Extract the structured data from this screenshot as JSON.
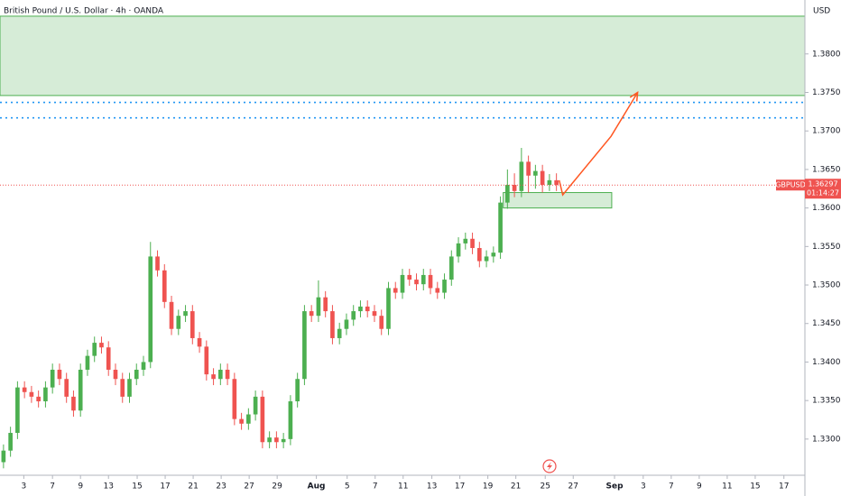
{
  "chart_data": {
    "type": "candlestick",
    "title": "British Pound / U.S. Dollar · 4h · OANDA",
    "currency": "USD",
    "symbol": "GBPUSD",
    "last_price": 1.36297,
    "last_price_label": "1.36297",
    "countdown": "01:14:27",
    "up_color": "#4caf50",
    "down_color": "#ef5350",
    "ylim": [
      1.3253,
      1.387
    ],
    "yticks": [
      {
        "value": 1.33,
        "label": "1.33000"
      },
      {
        "value": 1.335,
        "label": "1.33500"
      },
      {
        "value": 1.34,
        "label": "1.34000"
      },
      {
        "value": 1.345,
        "label": "1.34500"
      },
      {
        "value": 1.35,
        "label": "1.35000"
      },
      {
        "value": 1.355,
        "label": "1.35500"
      },
      {
        "value": 1.36,
        "label": "1.36000"
      },
      {
        "value": 1.365,
        "label": "1.36500"
      },
      {
        "value": 1.37,
        "label": "1.37000"
      },
      {
        "value": 1.375,
        "label": "1.37500"
      },
      {
        "value": 1.38,
        "label": "1.38000"
      }
    ],
    "xlim": [
      -0.5,
      114.5
    ],
    "xticks": [
      {
        "value": 2.9,
        "label": "3"
      },
      {
        "value": 7.0,
        "label": "7"
      },
      {
        "value": 11.0,
        "label": "9"
      },
      {
        "value": 15.0,
        "label": "13"
      },
      {
        "value": 19.1,
        "label": "15"
      },
      {
        "value": 23.1,
        "label": "17"
      },
      {
        "value": 27.1,
        "label": "21"
      },
      {
        "value": 31.1,
        "label": "23"
      },
      {
        "value": 35.1,
        "label": "27"
      },
      {
        "value": 39.1,
        "label": "29"
      },
      {
        "value": 44.7,
        "label": "Aug"
      },
      {
        "value": 49.1,
        "label": "5"
      },
      {
        "value": 53.1,
        "label": "7"
      },
      {
        "value": 57.1,
        "label": "11"
      },
      {
        "value": 61.2,
        "label": "13"
      },
      {
        "value": 65.2,
        "label": "17"
      },
      {
        "value": 69.2,
        "label": "19"
      },
      {
        "value": 73.2,
        "label": "21"
      },
      {
        "value": 77.4,
        "label": "25"
      },
      {
        "value": 81.4,
        "label": "27"
      },
      {
        "value": 87.3,
        "label": "Sep"
      },
      {
        "value": 91.4,
        "label": "3"
      },
      {
        "value": 95.4,
        "label": "7"
      },
      {
        "value": 99.4,
        "label": "9"
      },
      {
        "value": 103.4,
        "label": "11"
      },
      {
        "value": 107.4,
        "label": "15"
      },
      {
        "value": 111.5,
        "label": "17"
      }
    ],
    "open": [
      1.327,
      1.3285,
      1.3308,
      1.3367,
      1.3361,
      1.3355,
      1.3349,
      1.3367,
      1.339,
      1.3378,
      1.3355,
      1.3337,
      1.339,
      1.3408,
      1.3425,
      1.3419,
      1.339,
      1.3378,
      1.3355,
      1.3378,
      1.339,
      1.34,
      1.3537,
      1.3519,
      1.3478,
      1.3443,
      1.346,
      1.3466,
      1.3431,
      1.342,
      1.3384,
      1.3378,
      1.339,
      1.3378,
      1.3326,
      1.332,
      1.3332,
      1.3355,
      1.3296,
      1.3302,
      1.3296,
      1.33,
      1.3349,
      1.3378,
      1.3466,
      1.346,
      1.3484,
      1.3466,
      1.3431,
      1.3443,
      1.3455,
      1.3466,
      1.3472,
      1.3466,
      1.346,
      1.3443,
      1.3496,
      1.349,
      1.3513,
      1.3507,
      1.3501,
      1.3513,
      1.3496,
      1.349,
      1.3507,
      1.3537,
      1.3554,
      1.356,
      1.3548,
      1.3531,
      1.3537,
      1.3542,
      1.3607,
      1.363,
      1.3622,
      1.366,
      1.3642,
      1.3648,
      1.363,
      1.3636
    ],
    "high": [
      1.3293,
      1.3316,
      1.3375,
      1.3375,
      1.3369,
      1.3363,
      1.3375,
      1.3398,
      1.3398,
      1.3386,
      1.3363,
      1.3398,
      1.3416,
      1.3433,
      1.3433,
      1.3427,
      1.3398,
      1.3386,
      1.3386,
      1.3398,
      1.3408,
      1.3556,
      1.3545,
      1.3527,
      1.3486,
      1.3468,
      1.3474,
      1.3474,
      1.3439,
      1.3428,
      1.3392,
      1.3398,
      1.3398,
      1.3386,
      1.3334,
      1.334,
      1.3363,
      1.3363,
      1.331,
      1.331,
      1.3308,
      1.3357,
      1.3386,
      1.3474,
      1.3474,
      1.3506,
      1.3492,
      1.3474,
      1.3451,
      1.3463,
      1.3474,
      1.348,
      1.348,
      1.3474,
      1.3468,
      1.3504,
      1.3504,
      1.3521,
      1.3521,
      1.3515,
      1.3521,
      1.3521,
      1.3504,
      1.3515,
      1.3545,
      1.3562,
      1.3568,
      1.3568,
      1.3556,
      1.3545,
      1.355,
      1.3615,
      1.365,
      1.3645,
      1.3678,
      1.3668,
      1.3656,
      1.3656,
      1.3644,
      1.3645
    ],
    "low": [
      1.3262,
      1.3277,
      1.33,
      1.3353,
      1.3347,
      1.3341,
      1.3341,
      1.3359,
      1.337,
      1.3347,
      1.3329,
      1.3329,
      1.3382,
      1.34,
      1.3411,
      1.3382,
      1.337,
      1.3347,
      1.3347,
      1.337,
      1.3382,
      1.3392,
      1.3511,
      1.347,
      1.3435,
      1.3435,
      1.3452,
      1.3423,
      1.3412,
      1.3376,
      1.337,
      1.337,
      1.337,
      1.3318,
      1.3312,
      1.3312,
      1.3324,
      1.3288,
      1.3288,
      1.3288,
      1.3288,
      1.3292,
      1.3341,
      1.337,
      1.3452,
      1.3452,
      1.3458,
      1.3423,
      1.3423,
      1.3435,
      1.3447,
      1.3458,
      1.3458,
      1.3452,
      1.3435,
      1.3435,
      1.3482,
      1.3482,
      1.3499,
      1.3493,
      1.3493,
      1.3488,
      1.3482,
      1.3482,
      1.3499,
      1.3529,
      1.3546,
      1.354,
      1.3523,
      1.3523,
      1.3529,
      1.3534,
      1.3599,
      1.3614,
      1.3614,
      1.362,
      1.3625,
      1.362,
      1.3622,
      1.3622
    ],
    "close": [
      1.3285,
      1.3308,
      1.3367,
      1.3361,
      1.3355,
      1.3349,
      1.3367,
      1.339,
      1.3378,
      1.3355,
      1.3337,
      1.339,
      1.3408,
      1.3425,
      1.3419,
      1.339,
      1.3378,
      1.3355,
      1.3378,
      1.339,
      1.34,
      1.3537,
      1.3519,
      1.3478,
      1.3443,
      1.346,
      1.3466,
      1.3431,
      1.342,
      1.3384,
      1.3378,
      1.339,
      1.3378,
      1.3326,
      1.332,
      1.3332,
      1.3355,
      1.3296,
      1.3302,
      1.3296,
      1.33,
      1.3349,
      1.3378,
      1.3466,
      1.346,
      1.3484,
      1.3466,
      1.3431,
      1.3443,
      1.3455,
      1.3466,
      1.3472,
      1.3466,
      1.346,
      1.3443,
      1.3496,
      1.349,
      1.3513,
      1.3507,
      1.3501,
      1.3513,
      1.3496,
      1.349,
      1.3507,
      1.3537,
      1.3554,
      1.356,
      1.3548,
      1.3531,
      1.3537,
      1.3542,
      1.3607,
      1.363,
      1.3622,
      1.366,
      1.3642,
      1.3648,
      1.363,
      1.3636,
      1.363
    ],
    "zones": [
      {
        "x": [
          -0.5,
          114.5
        ],
        "y": [
          1.3746,
          1.3849
        ],
        "color": "#c8e6c9"
      },
      {
        "x": [
          71.4,
          86.9
        ],
        "y": [
          1.36,
          1.362
        ],
        "color": "#c8e6c9"
      }
    ],
    "levels": [
      1.3737,
      1.3717
    ],
    "level_color": "#2196f3",
    "projection": {
      "x": [
        79.4,
        79.9,
        86.8,
        90.6
      ],
      "y": [
        1.3636,
        1.3617,
        1.3693,
        1.375
      ],
      "color": "#ff5722"
    }
  }
}
